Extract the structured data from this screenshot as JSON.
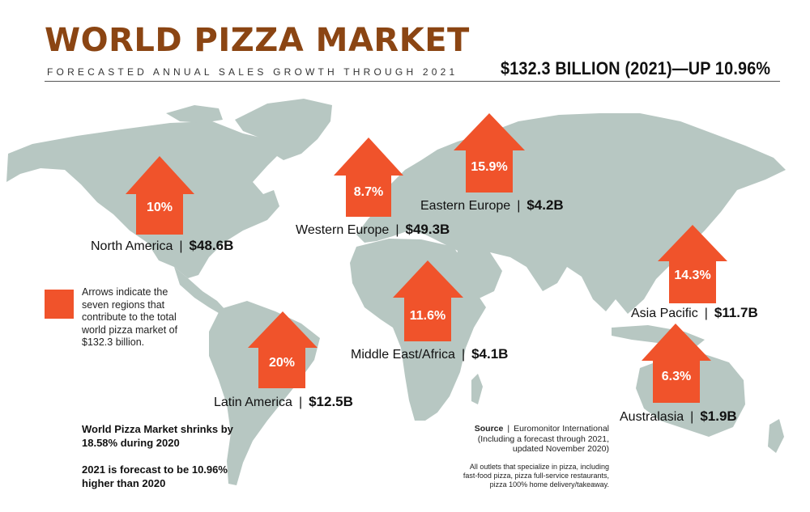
{
  "header": {
    "title": "WORLD PIZZA MARKET",
    "subtitle": "FORECASTED ANNUAL SALES GROWTH THROUGH 2021",
    "total": "$132.3 BILLION (2021)—UP 10.96%"
  },
  "colors": {
    "arrow": "#f0532b",
    "land": "#b7c7c2",
    "title": "#8b4513"
  },
  "regions": [
    {
      "name": "North America",
      "growth": "10%",
      "value": "$48.6B"
    },
    {
      "name": "Western Europe",
      "growth": "8.7%",
      "value": "$49.3B"
    },
    {
      "name": "Eastern Europe",
      "growth": "15.9%",
      "value": "$4.2B"
    },
    {
      "name": "Asia Pacific",
      "growth": "14.3%",
      "value": "$11.7B"
    },
    {
      "name": "Middle East/Africa",
      "growth": "11.6%",
      "value": "$4.1B"
    },
    {
      "name": "Latin America",
      "growth": "20%",
      "value": "$12.5B"
    },
    {
      "name": "Australasia",
      "growth": "6.3%",
      "value": "$1.9B"
    }
  ],
  "legend": {
    "text": "Arrows indicate the seven regions that contribute to the total world pizza market of $132.3 billion."
  },
  "notes": [
    "World Pizza Market shrinks by 18.58% during 2020",
    "2021 is forecast to be 10.96% higher than 2020"
  ],
  "source": {
    "label": "Source",
    "name": "Euromonitor International",
    "detail": "(Including a forecast through 2021, updated November 2020)",
    "fine": "All outlets that specialize in pizza, including fast-food pizza, pizza full-service restaurants, pizza 100% home delivery/takeaway."
  },
  "separator": "|"
}
